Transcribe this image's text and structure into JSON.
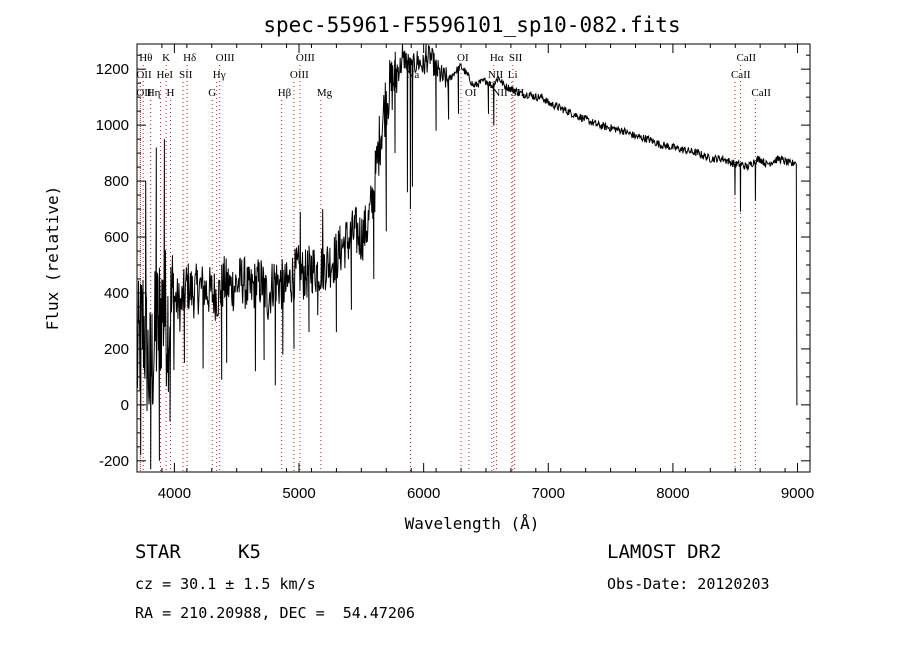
{
  "chart_data": {
    "type": "line",
    "title": "spec-55961-F5596101_sp10-082.fits",
    "xlabel": "Wavelength (Å)",
    "ylabel": "Flux (relative)",
    "xlim": [
      3700,
      9100
    ],
    "ylim": [
      -240,
      1290
    ],
    "xticks": [
      4000,
      5000,
      6000,
      7000,
      8000,
      9000
    ],
    "yticks": [
      -200,
      0,
      200,
      400,
      600,
      800,
      1000,
      1200
    ],
    "grid": false,
    "series": [
      {
        "color": "#000000",
        "x": [
          3700,
          3750,
          3800,
          3850,
          3900,
          3950,
          4000,
          4050,
          4100,
          4150,
          4200,
          4250,
          4300,
          4350,
          4400,
          4450,
          4500,
          4550,
          4600,
          4650,
          4700,
          4750,
          4800,
          4850,
          4900,
          4950,
          5000,
          5050,
          5100,
          5150,
          5200,
          5250,
          5300,
          5350,
          5400,
          5450,
          5500,
          5550,
          5600,
          5650,
          5700,
          5750,
          5800,
          5850,
          5900,
          5950,
          6000,
          6050,
          6100,
          6150,
          6200,
          6250,
          6300,
          6350,
          6400,
          6450,
          6500,
          6550,
          6600,
          6650,
          6700,
          6750,
          6800,
          6850,
          6900,
          6950,
          7000,
          7100,
          7200,
          7300,
          7400,
          7500,
          7600,
          7700,
          7800,
          7900,
          8000,
          8100,
          8200,
          8300,
          8400,
          8450,
          8500,
          8550,
          8600,
          8650,
          8700,
          8750,
          8800,
          8850,
          8900,
          8950,
          8980,
          9000
        ],
        "y": [
          150,
          300,
          100,
          250,
          350,
          300,
          380,
          350,
          430,
          400,
          420,
          410,
          400,
          390,
          440,
          420,
          430,
          450,
          400,
          430,
          440,
          380,
          450,
          430,
          420,
          460,
          480,
          460,
          490,
          480,
          500,
          510,
          530,
          570,
          590,
          620,
          600,
          640,
          760,
          960,
          1100,
          1150,
          1200,
          1240,
          1200,
          1230,
          1210,
          1250,
          1200,
          1170,
          1160,
          1190,
          1210,
          1180,
          1140,
          1150,
          1160,
          1140,
          1170,
          1140,
          1130,
          1120,
          1110,
          1110,
          1100,
          1100,
          1080,
          1060,
          1040,
          1020,
          1000,
          990,
          980,
          960,
          950,
          930,
          920,
          910,
          900,
          880,
          880,
          870,
          860,
          860,
          850,
          870,
          880,
          860,
          870,
          880,
          870,
          860,
          870,
          0
        ],
        "dips": [
          [
            3730,
            -180
          ],
          [
            3770,
            800
          ],
          [
            3810,
            -230
          ],
          [
            3855,
            920
          ],
          [
            3880,
            -200
          ],
          [
            3920,
            950
          ],
          [
            3965,
            -60
          ],
          [
            4080,
            150
          ],
          [
            4230,
            130
          ],
          [
            4380,
            90
          ],
          [
            4420,
            150
          ],
          [
            4650,
            120
          ],
          [
            4720,
            160
          ],
          [
            4810,
            70
          ],
          [
            4870,
            180
          ],
          [
            4960,
            200
          ],
          [
            5010,
            690
          ],
          [
            5080,
            260
          ],
          [
            5150,
            320
          ],
          [
            5190,
            700
          ],
          [
            5300,
            260
          ],
          [
            5420,
            340
          ],
          [
            5600,
            450
          ],
          [
            5700,
            620
          ],
          [
            5770,
            900
          ],
          [
            5830,
            1290
          ],
          [
            5870,
            760
          ],
          [
            5894,
            700
          ],
          [
            5910,
            780
          ],
          [
            6020,
            1300
          ],
          [
            6100,
            980
          ],
          [
            6200,
            1020
          ],
          [
            6280,
            1040
          ],
          [
            6520,
            1040
          ],
          [
            6563,
            1000
          ],
          [
            8498,
            750
          ],
          [
            8542,
            690
          ],
          [
            8662,
            730
          ],
          [
            8985,
            830
          ],
          [
            9000,
            0
          ]
        ]
      }
    ],
    "lines": [
      {
        "x": 3750,
        "label": "Hθ",
        "row": 0
      },
      {
        "x": 3727,
        "label": "OII",
        "row": 1
      },
      {
        "x": 3727,
        "label": "OII",
        "row": 2
      },
      {
        "x": 3810,
        "label": "Hη",
        "row": 2
      },
      {
        "x": 3889,
        "label": "HeI",
        "row": 1
      },
      {
        "x": 3934,
        "label": "K",
        "row": 0
      },
      {
        "x": 3969,
        "label": "H",
        "row": 2
      },
      {
        "x": 4069,
        "label": "SII",
        "row": 1
      },
      {
        "x": 4102,
        "label": "Hδ",
        "row": 0
      },
      {
        "x": 4340,
        "label": "Hγ",
        "row": 1
      },
      {
        "x": 4304,
        "label": "G",
        "row": 2
      },
      {
        "x": 4363,
        "label": "OIII",
        "row": 0
      },
      {
        "x": 4861,
        "label": "Hβ",
        "row": 2
      },
      {
        "x": 4959,
        "label": "OIII",
        "row": 1
      },
      {
        "x": 5007,
        "label": "OIII",
        "row": 0
      },
      {
        "x": 5175,
        "label": "Mg",
        "row": 2
      },
      {
        "x": 5894,
        "label": "Na",
        "row": 1
      },
      {
        "x": 6300,
        "label": "OI",
        "row": 0
      },
      {
        "x": 6363,
        "label": "OI",
        "row": 2
      },
      {
        "x": 6548,
        "label": "NII",
        "row": 1
      },
      {
        "x": 6563,
        "label": "Hα",
        "row": 0
      },
      {
        "x": 6584,
        "label": "NII",
        "row": 2
      },
      {
        "x": 6707,
        "label": "Li",
        "row": 1
      },
      {
        "x": 6716,
        "label": "SII",
        "row": 0
      },
      {
        "x": 6731,
        "label": "SII",
        "row": 2
      },
      {
        "x": 8498,
        "label": "CaII",
        "row": 1
      },
      {
        "x": 8542,
        "label": "CaII",
        "row": 0
      },
      {
        "x": 8662,
        "label": "CaII",
        "row": 2
      }
    ]
  },
  "info": {
    "class": "STAR",
    "subclass": "K5",
    "survey": "LAMOST DR2",
    "cz": "cz = 30.1 ± 1.5 km/s",
    "obs_date": "Obs-Date: 20120203",
    "coords": "RA = 210.20988, DEC =  54.47206"
  }
}
